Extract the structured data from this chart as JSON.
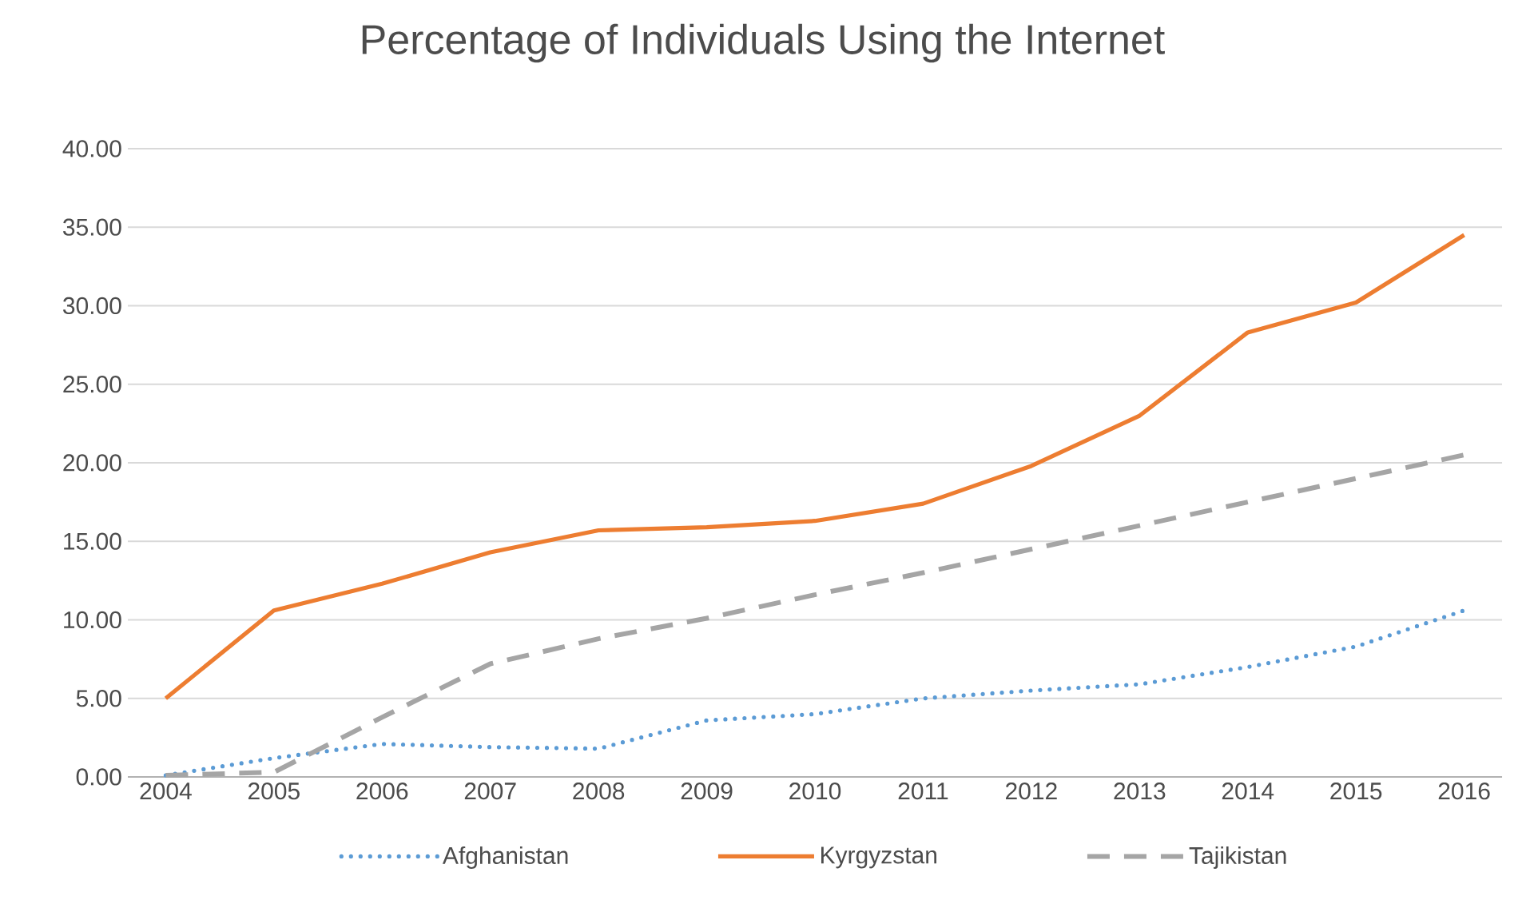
{
  "chart_data": {
    "type": "line",
    "title": "Percentage of Individuals Using the Internet",
    "categories": [
      "2004",
      "2005",
      "2006",
      "2007",
      "2008",
      "2009",
      "2010",
      "2011",
      "2012",
      "2013",
      "2014",
      "2015",
      "2016"
    ],
    "series": [
      {
        "name": "Afghanistan",
        "color": "#5b9bd5",
        "line_style": "dotted",
        "values": [
          0.1,
          1.2,
          2.1,
          1.9,
          1.8,
          3.6,
          4.0,
          5.0,
          5.5,
          5.9,
          7.0,
          8.3,
          10.6
        ]
      },
      {
        "name": "Kyrgyzstan",
        "color": "#ed7d31",
        "line_style": "solid",
        "values": [
          5.0,
          10.6,
          12.3,
          14.3,
          15.7,
          15.9,
          16.3,
          17.4,
          19.8,
          23.0,
          28.3,
          30.2,
          34.5
        ]
      },
      {
        "name": "Tajikistan",
        "color": "#a5a5a5",
        "line_style": "dashed",
        "values": [
          0.1,
          0.3,
          3.8,
          7.2,
          8.8,
          10.1,
          11.6,
          13.0,
          14.5,
          16.0,
          17.5,
          19.0,
          20.5
        ]
      }
    ],
    "ylim": [
      0,
      40
    ],
    "yticks": [
      {
        "value": 0,
        "label": "0.00"
      },
      {
        "value": 5,
        "label": "5.00"
      },
      {
        "value": 10,
        "label": "10.00"
      },
      {
        "value": 15,
        "label": "15.00"
      },
      {
        "value": 20,
        "label": "20.00"
      },
      {
        "value": 25,
        "label": "25.00"
      },
      {
        "value": 30,
        "label": "30.00"
      },
      {
        "value": 35,
        "label": "35.00"
      },
      {
        "value": 40,
        "label": "40.00"
      }
    ],
    "grid": "y",
    "legend": "bottom",
    "marker": "none"
  }
}
